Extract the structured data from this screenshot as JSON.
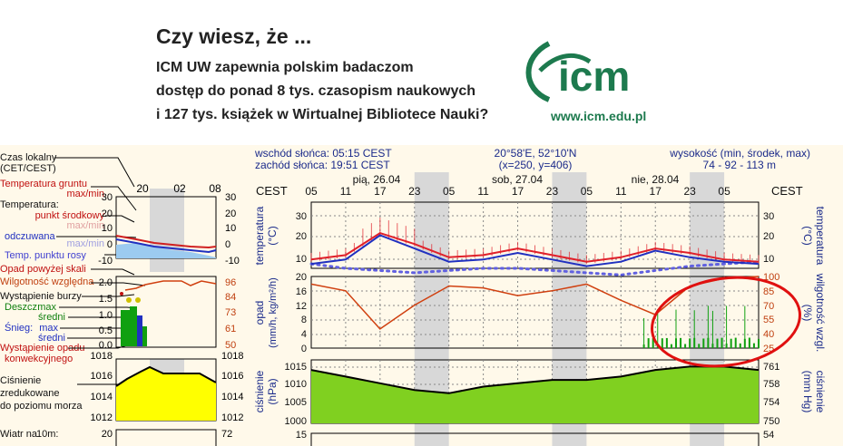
{
  "banner": {
    "title": "Czy wiesz, że ...",
    "line1": "ICM UW zapewnia polskim badaczom",
    "line2": "dostęp do ponad 8 tys. czasopism naukowych",
    "line3": "i 127 tys. książek w Wirtualnej Bibliotece Nauki?",
    "logo_word": "icm",
    "logo_url": "www.icm.edu.pl"
  },
  "header": {
    "sunrise": "wschód słońca: 05:15 CEST",
    "sunset": "zachód słońca: 19:51 CEST",
    "coords": "20°58'E, 52°10'N",
    "grid": "(x=250, y=406)",
    "alt_label": "wysokość (min, środek, max)",
    "alt_values": "74 - 92 - 113 m",
    "tz": "CEST",
    "days": [
      "pią, 26.04",
      "sob, 27.04",
      "nie, 28.04"
    ],
    "hours": [
      "05",
      "11",
      "17",
      "23",
      "05",
      "11",
      "17",
      "23",
      "05",
      "11",
      "17",
      "23",
      "05"
    ]
  },
  "legend": {
    "local_time": "Czas lokalny",
    "local_time2": "(CET/CEST)",
    "soil_temp": "Temperatura gruntu",
    "soil_temp_mm": "max/min",
    "temp": "Temperatura:",
    "temp_mid": "punkt środkowy",
    "temp_maxmin": "max/min",
    "felt": "odczuwana",
    "felt_maxmin": "max/min",
    "dew": "Temp. punktu rosy",
    "precip_over": "Opad powyżej skali",
    "humidity": "Wilgotność względna",
    "storm": "Wystąpienie burzy",
    "rain": "Deszcz:",
    "rain_max": "max",
    "rain_avg": "średni",
    "snow": "Śnieg:",
    "snow_max": "max",
    "snow_avg": "średni",
    "conv": "Wystąpienie opadu",
    "conv2": "konwekcyjnego",
    "pressure": "Ciśnienie",
    "pressure2": "zredukowane",
    "pressure3": "do poziomu morza",
    "wind": "Wiatr na",
    "wind_h": "10m:"
  },
  "mini": {
    "hours": [
      "20",
      "02",
      "08"
    ],
    "temp_ticks": [
      "30",
      "20",
      "10",
      "0",
      "-10"
    ],
    "precip_ticks": [
      "2.0",
      "1.5",
      "1.0",
      "0.5",
      "0.0"
    ],
    "hum_ticks": [
      "96",
      "84",
      "73",
      "61",
      "50"
    ],
    "press_ticks": [
      "1018",
      "1016",
      "1014",
      "1012"
    ],
    "press_ticks_r": [
      "1018",
      "1016",
      "1014",
      "1012"
    ],
    "wind_tick": "20",
    "wind_tick_r": "72"
  },
  "axes": {
    "temp_label": "temperatura",
    "temp_unit": "(°C)",
    "temp_ticks": [
      "30",
      "20",
      "10"
    ],
    "precip_label": "opad",
    "precip_unit": "(mm/h, kg/m²/h)",
    "precip_ticks": [
      "20",
      "16",
      "12",
      "8",
      "4",
      "0"
    ],
    "hum_label": "wilgotność wzgl.",
    "hum_unit": "(%)",
    "hum_ticks": [
      "100",
      "85",
      "70",
      "55",
      "40",
      "25"
    ],
    "press_label": "ciśnienie",
    "press_unit": "(hPa)",
    "press_ticks": [
      "1015",
      "1010",
      "1005",
      "1000"
    ],
    "press_label_r": "ciśnienie",
    "press_unit_r": "(mm Hg)",
    "press_ticks_r": [
      "761",
      "758",
      "754",
      "750"
    ],
    "wind_tick": "15",
    "wind_tick_r": "54"
  },
  "colors": {
    "temp": "#e0202a",
    "felt": "#2030c0",
    "dew": "#6060e0",
    "humidity": "#d04010",
    "rain": "#10a010",
    "pressure_fill_mini": "#ffff00",
    "pressure_fill": "#80d020",
    "annotation": "#e01010",
    "night": "#d8d8d8"
  },
  "chart_data": [
    {
      "type": "line",
      "name": "temperature",
      "x_hours": [
        0,
        6,
        12,
        18,
        24,
        30,
        36,
        42,
        48,
        54,
        60,
        66,
        72,
        78
      ],
      "temp": [
        9,
        11,
        21,
        16,
        10,
        11,
        14,
        11,
        8,
        10,
        14,
        12,
        9,
        8
      ],
      "felt": [
        7,
        9,
        20,
        14,
        8,
        9,
        12,
        9,
        6,
        8,
        13,
        10,
        8,
        7
      ],
      "dew": [
        7,
        5,
        4,
        3,
        4,
        5,
        5,
        4,
        3,
        2,
        4,
        6,
        7,
        8
      ],
      "ylim": [
        5,
        35
      ]
    },
    {
      "type": "line",
      "name": "humidity",
      "x_hours": [
        0,
        6,
        12,
        18,
        24,
        30,
        36,
        42,
        48,
        54,
        60,
        66,
        72,
        78
      ],
      "values": [
        92,
        85,
        45,
        70,
        90,
        88,
        80,
        85,
        92,
        75,
        60,
        90,
        98,
        100
      ],
      "ylim": [
        25,
        100
      ]
    },
    {
      "type": "line",
      "name": "pressure",
      "x_hours": [
        0,
        6,
        12,
        18,
        24,
        30,
        36,
        42,
        48,
        54,
        60,
        66,
        72,
        78
      ],
      "values": [
        1015,
        1013,
        1011,
        1009,
        1008,
        1010,
        1011,
        1012,
        1012,
        1013,
        1015,
        1016,
        1016,
        1015
      ],
      "ylim": [
        999,
        1018
      ]
    }
  ]
}
